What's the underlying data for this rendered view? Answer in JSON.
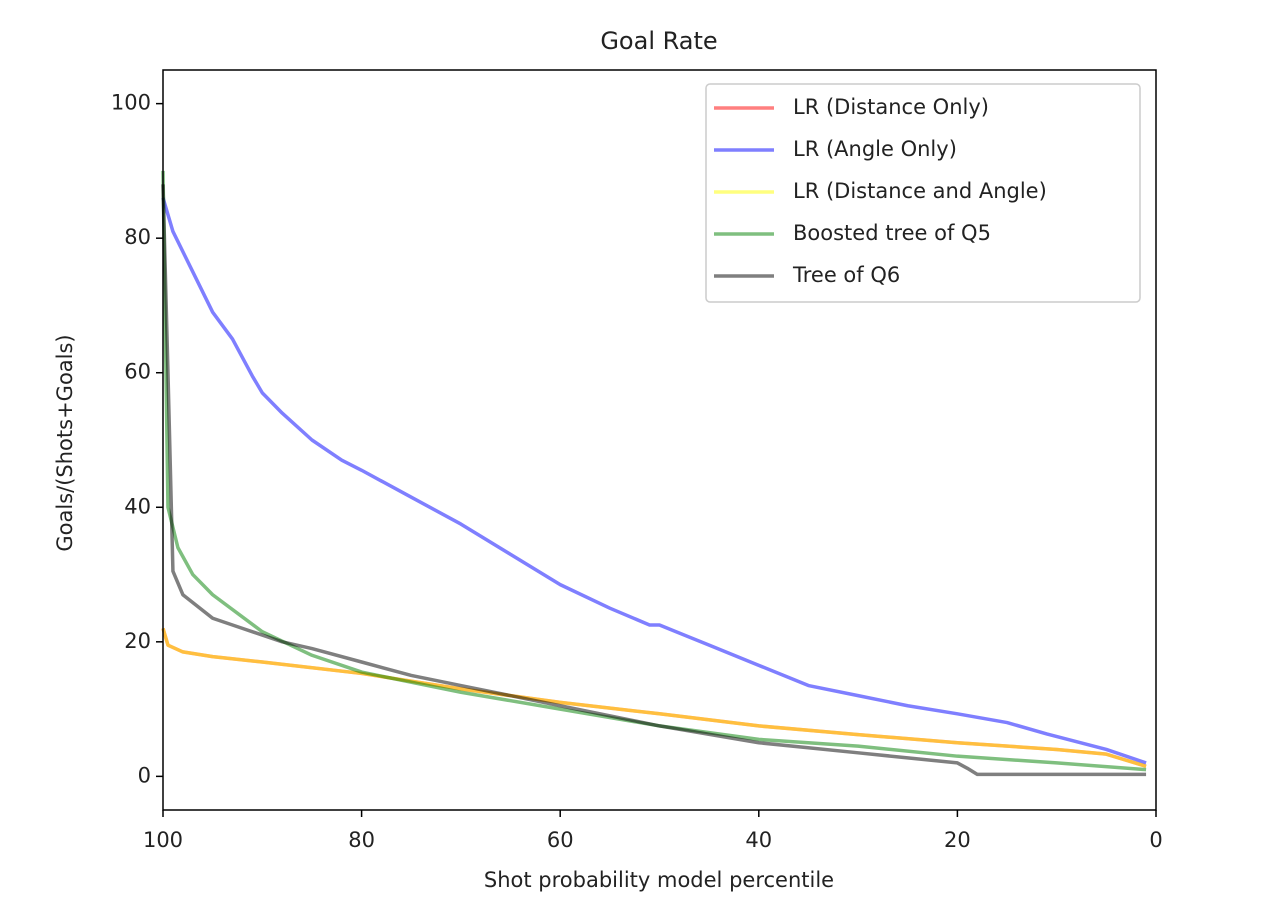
{
  "chart_data": {
    "type": "line",
    "title": "Goal Rate",
    "xlabel": "Shot probability model percentile",
    "ylabel": "Goals/(Shots+Goals)",
    "xlim": [
      100,
      0
    ],
    "ylim": [
      -5,
      105
    ],
    "xticks": [
      100,
      80,
      60,
      40,
      20,
      0
    ],
    "yticks": [
      0,
      20,
      40,
      60,
      80,
      100
    ],
    "grid": false,
    "legend": "upper right",
    "alpha": 0.5,
    "series": [
      {
        "name": "LR (Distance Only)",
        "color": "red",
        "x": [
          100,
          99.5,
          98,
          95,
          90,
          80,
          70,
          60,
          50,
          40,
          30,
          20,
          10,
          5,
          1
        ],
        "values": [
          22,
          19.5,
          18.5,
          17.8,
          17,
          15.3,
          13,
          11,
          9.3,
          7.5,
          6.2,
          5,
          4,
          3.3,
          1.5
        ]
      },
      {
        "name": "LR (Angle Only)",
        "color": "blue",
        "x": [
          100,
          99,
          97,
          95,
          93,
          91,
          90,
          88,
          85,
          82,
          80,
          75,
          70,
          65,
          60,
          55,
          51,
          50,
          45,
          40,
          35,
          30,
          25,
          20,
          15,
          11,
          5,
          1
        ],
        "values": [
          86,
          81,
          75,
          69,
          65,
          59.5,
          57,
          54,
          50,
          47,
          45.5,
          41.5,
          37.5,
          33,
          28.5,
          25,
          22.5,
          22.5,
          19.5,
          16.5,
          13.5,
          12,
          10.5,
          9.3,
          8,
          6.3,
          4,
          2
        ]
      },
      {
        "name": "LR (Distance and Angle)",
        "color": "yellow",
        "x": [
          100,
          99.5,
          98,
          95,
          90,
          80,
          70,
          60,
          50,
          40,
          30,
          20,
          10,
          5,
          1
        ],
        "values": [
          22,
          19.5,
          18.5,
          17.8,
          17,
          15.3,
          13,
          11,
          9.3,
          7.5,
          6.2,
          5,
          4,
          3.3,
          1.5
        ]
      },
      {
        "name": "Boosted tree of Q5",
        "color": "green",
        "x": [
          100,
          99.5,
          98.5,
          97,
          95,
          90,
          85,
          80,
          70,
          60,
          50,
          40,
          30,
          20,
          10,
          1
        ],
        "values": [
          90,
          40,
          34,
          30,
          27,
          21.5,
          18,
          15.5,
          12.5,
          10,
          7.5,
          5.5,
          4.5,
          3,
          2,
          1
        ]
      },
      {
        "name": "Tree of Q6",
        "color": "black",
        "x": [
          100,
          99.5,
          99,
          98,
          95,
          92,
          88,
          85,
          80,
          75,
          70,
          60,
          50,
          40,
          30,
          20,
          19,
          18,
          10,
          1
        ],
        "values": [
          88,
          60,
          30.5,
          27,
          23.5,
          22,
          20,
          19,
          17,
          15,
          13.5,
          10.5,
          7.5,
          5,
          3.5,
          2,
          1.2,
          0.3,
          0.3,
          0.3
        ]
      }
    ]
  }
}
